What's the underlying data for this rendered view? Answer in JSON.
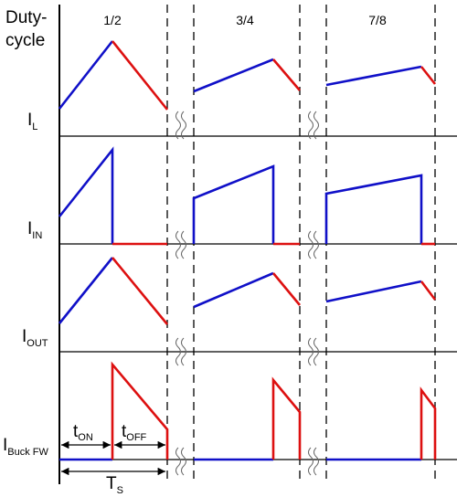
{
  "title": {
    "line1": "Duty-",
    "line2": "cycle"
  },
  "duty_cycles": [
    "1/2",
    "3/4",
    "7/8"
  ],
  "signals": [
    {
      "main": "I",
      "sub": "L"
    },
    {
      "main": "I",
      "sub": "IN"
    },
    {
      "main": "I",
      "sub": "OUT"
    },
    {
      "main": "I",
      "sub": "Buck FW"
    }
  ],
  "timing": {
    "ton": {
      "main": "t",
      "sub": "ON"
    },
    "toff": {
      "main": "t",
      "sub": "OFF"
    },
    "ts": {
      "main": "T",
      "sub": "S"
    }
  },
  "colors": {
    "on_phase": "#1010c8",
    "off_phase": "#dd1010",
    "axis": "#000000"
  }
}
